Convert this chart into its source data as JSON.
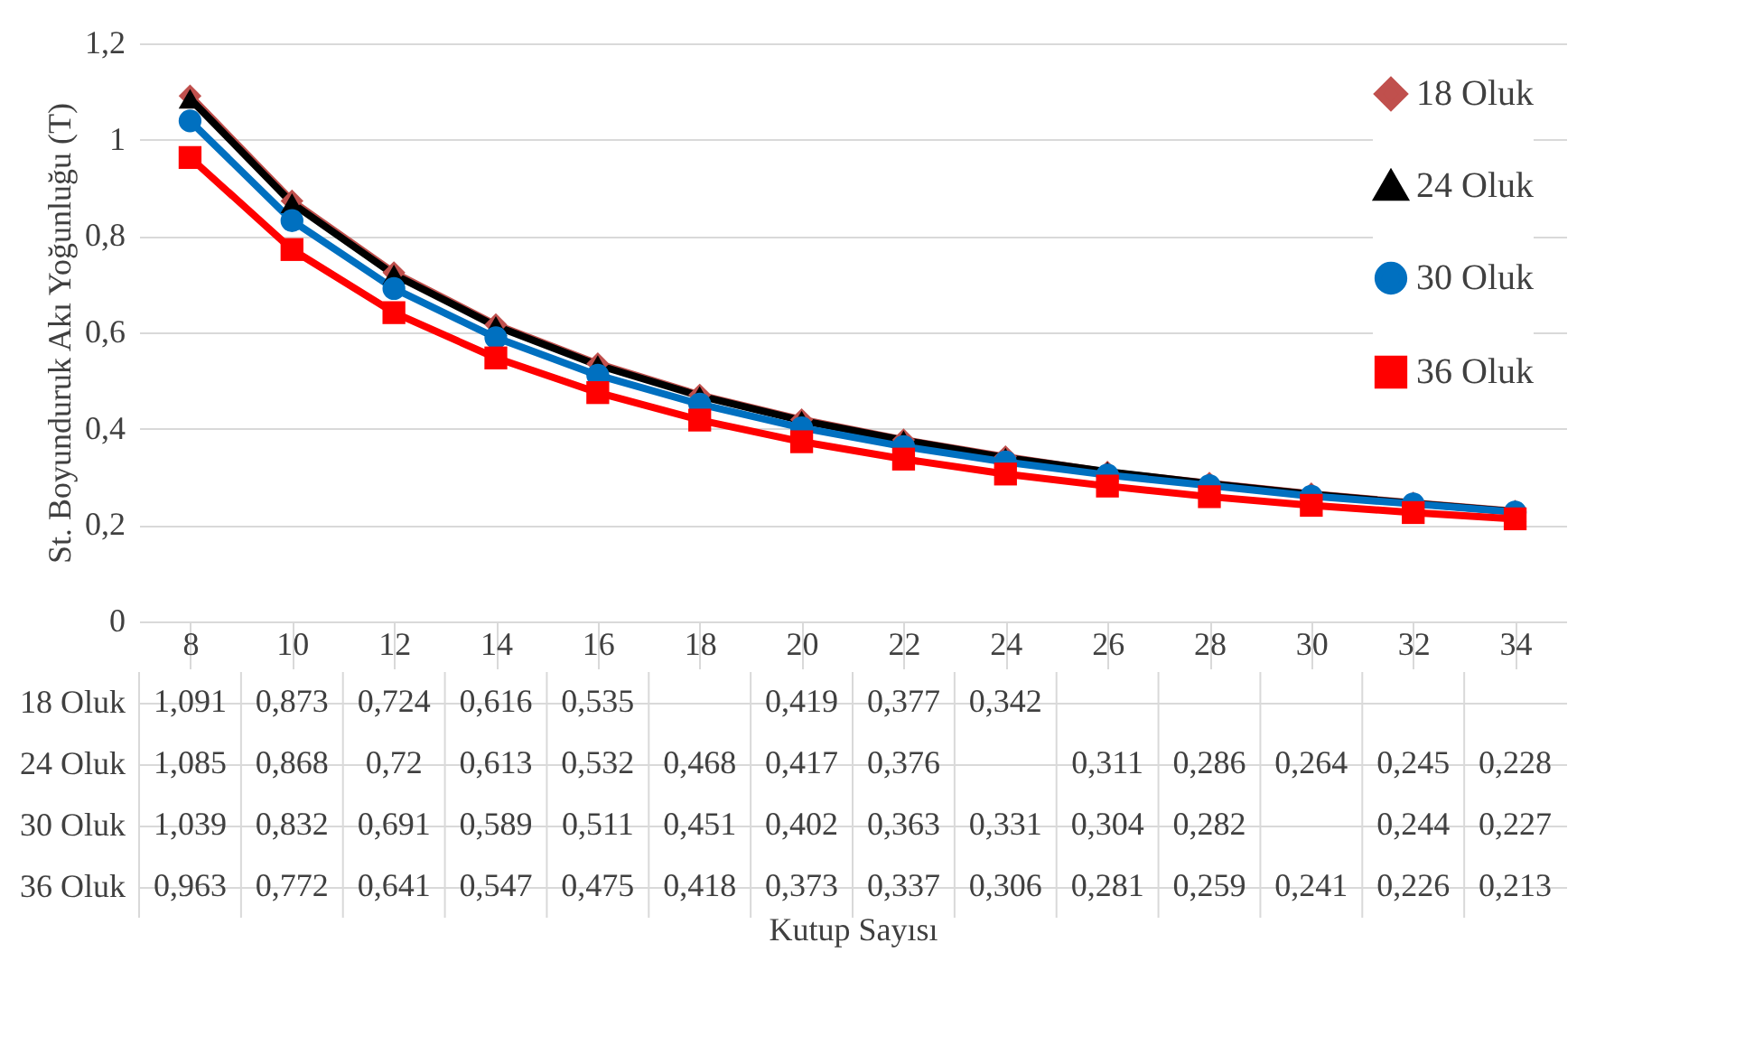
{
  "chart_data": {
    "type": "line",
    "ylabel": "St. Boyunduruk Akı Yoğunluğu (T)",
    "annotations": [
      "Kutup Sayısı"
    ],
    "categories": [
      "8",
      "10",
      "12",
      "14",
      "16",
      "18",
      "20",
      "22",
      "24",
      "26",
      "28",
      "30",
      "32",
      "34"
    ],
    "ylim": [
      0,
      1.2
    ],
    "yticks": [
      {
        "value": 0,
        "label": "0"
      },
      {
        "value": 0.2,
        "label": "0,2"
      },
      {
        "value": 0.4,
        "label": "0,4"
      },
      {
        "value": 0.6,
        "label": "0,6"
      },
      {
        "value": 0.8,
        "label": "0,8"
      },
      {
        "value": 1,
        "label": "1"
      },
      {
        "value": 1.2,
        "label": "1,2"
      }
    ],
    "grid": "y",
    "legend": "top right",
    "line_style": "solid",
    "series": [
      {
        "name": "18 Oluk",
        "color": "#c0504d",
        "marker": "diamond",
        "values": [
          1.091,
          0.873,
          0.724,
          0.616,
          0.535,
          0.47,
          0.419,
          0.377,
          0.342,
          0.31,
          0.287,
          0.265,
          0.246,
          0.229
        ],
        "value_labels": [
          "1,091",
          "0,873",
          "0,724",
          "0,616",
          "0,535",
          null,
          "0,419",
          "0,377",
          "0,342",
          null,
          null,
          null,
          null,
          null
        ]
      },
      {
        "name": "24 Oluk",
        "color": "#000000",
        "marker": "triangle",
        "values": [
          1.085,
          0.868,
          0.72,
          0.613,
          0.532,
          0.468,
          0.417,
          0.376,
          0.34,
          0.311,
          0.286,
          0.264,
          0.245,
          0.228
        ],
        "value_labels": [
          "1,085",
          "0,868",
          "0,72",
          "0,613",
          "0,532",
          "0,468",
          "0,417",
          "0,376",
          null,
          "0,311",
          "0,286",
          "0,264",
          "0,245",
          "0,228"
        ]
      },
      {
        "name": "30 Oluk",
        "color": "#0070c0",
        "marker": "circle",
        "values": [
          1.039,
          0.832,
          0.691,
          0.589,
          0.511,
          0.451,
          0.402,
          0.363,
          0.331,
          0.304,
          0.282,
          0.26,
          0.244,
          0.227
        ],
        "value_labels": [
          "1,039",
          "0,832",
          "0,691",
          "0,589",
          "0,511",
          "0,451",
          "0,402",
          "0,363",
          "0,331",
          "0,304",
          "0,282",
          null,
          "0,244",
          "0,227"
        ]
      },
      {
        "name": "36 Oluk",
        "color": "#ff0000",
        "marker": "square",
        "values": [
          0.963,
          0.772,
          0.641,
          0.547,
          0.475,
          0.418,
          0.373,
          0.337,
          0.306,
          0.281,
          0.259,
          0.241,
          0.226,
          0.213
        ],
        "value_labels": [
          "0,963",
          "0,772",
          "0,641",
          "0,547",
          "0,475",
          "0,418",
          "0,373",
          "0,337",
          "0,306",
          "0,281",
          "0,259",
          "0,241",
          "0,226",
          "0,213"
        ]
      }
    ]
  }
}
